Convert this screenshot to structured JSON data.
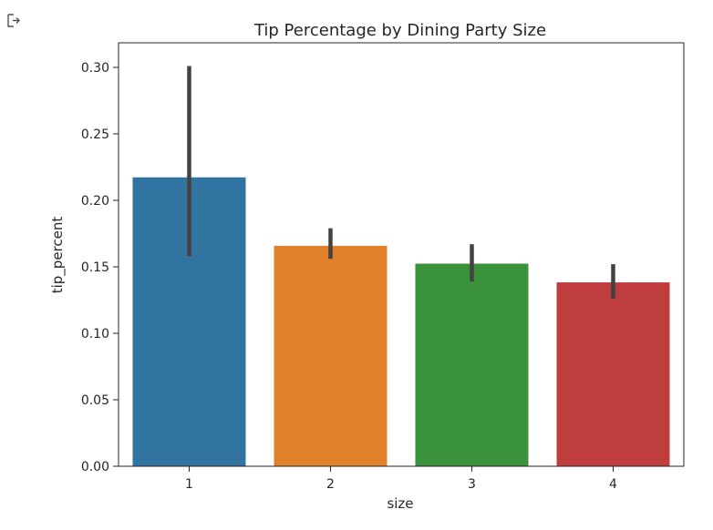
{
  "output_icon": "output-arrow-icon",
  "chart_data": {
    "type": "bar",
    "title": "Tip Percentage by Dining Party Size",
    "xlabel": "size",
    "ylabel": "tip_percent",
    "categories": [
      "1",
      "2",
      "3",
      "4"
    ],
    "values": [
      0.2173,
      0.1658,
      0.1524,
      0.1383
    ],
    "error_low": [
      0.158,
      0.156,
      0.139,
      0.126
    ],
    "error_high": [
      0.301,
      0.179,
      0.167,
      0.152
    ],
    "colors": [
      "#3274a1",
      "#e1812c",
      "#3a923a",
      "#c03d3e"
    ],
    "ylim": [
      0,
      0.3185
    ],
    "yticks": [
      0.0,
      0.05,
      0.1,
      0.15,
      0.2,
      0.25,
      0.3
    ],
    "ytick_labels": [
      "0.00",
      "0.05",
      "0.10",
      "0.15",
      "0.20",
      "0.25",
      "0.30"
    ],
    "grid": false,
    "legend": "none"
  }
}
